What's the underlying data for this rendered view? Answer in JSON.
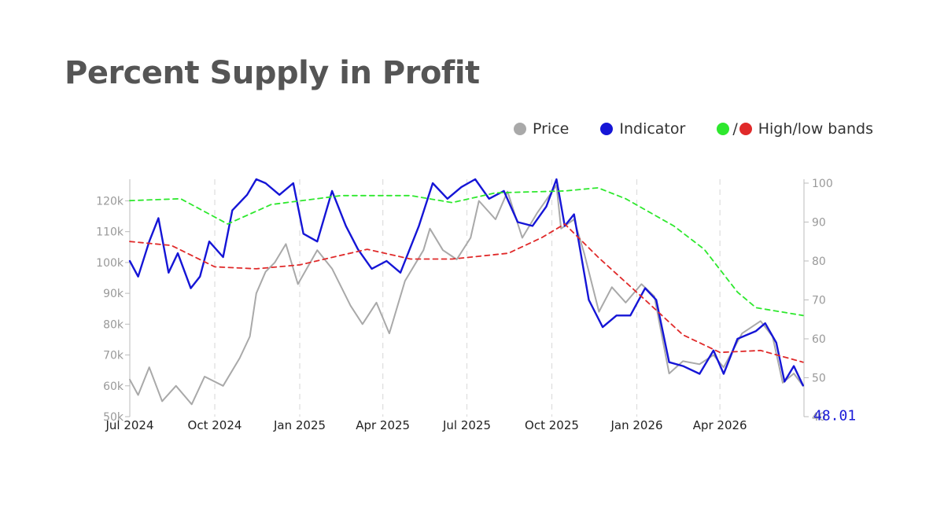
{
  "title": "Percent Supply in Profit",
  "legend": {
    "price": "Price",
    "indicator": "Indicator",
    "bands_slash": "/",
    "bands": "High/low bands"
  },
  "colors": {
    "price": "#a9a9a9",
    "indicator": "#1515d6",
    "high_band": "#2ee82e",
    "low_band": "#e02a2a",
    "grid": "#dddddd",
    "axis": "#bbbbbb"
  },
  "chart_data": {
    "type": "line",
    "x_ticks": [
      "Jul 2024",
      "Oct 2024",
      "Jan 2025",
      "Apr 2025",
      "Jul 2025",
      "Oct 2025",
      "Jan 2026",
      "Apr 2026"
    ],
    "x_range": [
      "2024-07",
      "2026-07"
    ],
    "y_left": {
      "ticks": [
        "50k",
        "60k",
        "70k",
        "80k",
        "90k",
        "100k",
        "110k",
        "120k"
      ],
      "range": [
        50000,
        127000
      ]
    },
    "y_right": {
      "ticks": [
        "40",
        "50",
        "60",
        "70",
        "80",
        "90",
        "100"
      ],
      "range": [
        40,
        101
      ]
    },
    "grid": "vertical dashed",
    "legend_position": "top-right",
    "last_value_label": "48.01",
    "series": [
      {
        "name": "Price",
        "axis": "left",
        "points": [
          [
            "2024-07-01",
            62000
          ],
          [
            "2024-07-10",
            57000
          ],
          [
            "2024-07-22",
            66000
          ],
          [
            "2024-08-05",
            55000
          ],
          [
            "2024-08-20",
            60000
          ],
          [
            "2024-09-06",
            54000
          ],
          [
            "2024-09-20",
            63000
          ],
          [
            "2024-10-10",
            60000
          ],
          [
            "2024-10-28",
            69000
          ],
          [
            "2024-11-08",
            76000
          ],
          [
            "2024-11-15",
            90000
          ],
          [
            "2024-11-25",
            97000
          ],
          [
            "2024-12-05",
            100000
          ],
          [
            "2024-12-17",
            106000
          ],
          [
            "2024-12-30",
            93000
          ],
          [
            "2025-01-20",
            104000
          ],
          [
            "2025-02-05",
            98000
          ],
          [
            "2025-02-25",
            86000
          ],
          [
            "2025-03-10",
            80000
          ],
          [
            "2025-03-25",
            87000
          ],
          [
            "2025-04-08",
            77000
          ],
          [
            "2025-04-25",
            94000
          ],
          [
            "2025-05-15",
            104000
          ],
          [
            "2025-05-22",
            111000
          ],
          [
            "2025-06-05",
            104000
          ],
          [
            "2025-06-20",
            101000
          ],
          [
            "2025-07-05",
            108000
          ],
          [
            "2025-07-14",
            120000
          ],
          [
            "2025-08-01",
            114000
          ],
          [
            "2025-08-14",
            123000
          ],
          [
            "2025-08-30",
            108000
          ],
          [
            "2025-09-15",
            116000
          ],
          [
            "2025-10-06",
            125000
          ],
          [
            "2025-10-11",
            111000
          ],
          [
            "2025-10-25",
            114000
          ],
          [
            "2025-11-05",
            103000
          ],
          [
            "2025-11-21",
            84000
          ],
          [
            "2025-12-05",
            92000
          ],
          [
            "2025-12-20",
            87000
          ],
          [
            "2026-01-06",
            93000
          ],
          [
            "2026-01-20",
            89000
          ],
          [
            "2026-02-05",
            64000
          ],
          [
            "2026-02-20",
            68000
          ],
          [
            "2026-03-10",
            67000
          ],
          [
            "2026-03-25",
            70000
          ],
          [
            "2026-04-05",
            66000
          ],
          [
            "2026-04-25",
            77000
          ],
          [
            "2026-05-15",
            81000
          ],
          [
            "2026-05-28",
            76000
          ],
          [
            "2026-06-08",
            61000
          ],
          [
            "2026-06-20",
            64000
          ],
          [
            "2026-06-30",
            60000
          ]
        ]
      },
      {
        "name": "Indicator",
        "axis": "right",
        "points": [
          [
            "2024-07-01",
            80
          ],
          [
            "2024-07-10",
            76
          ],
          [
            "2024-07-22",
            85
          ],
          [
            "2024-08-01",
            91
          ],
          [
            "2024-08-12",
            77
          ],
          [
            "2024-08-22",
            82
          ],
          [
            "2024-09-05",
            73
          ],
          [
            "2024-09-15",
            76
          ],
          [
            "2024-09-25",
            85
          ],
          [
            "2024-10-10",
            81
          ],
          [
            "2024-10-20",
            93
          ],
          [
            "2024-11-05",
            97
          ],
          [
            "2024-11-15",
            101
          ],
          [
            "2024-11-25",
            100
          ],
          [
            "2024-12-10",
            97
          ],
          [
            "2024-12-25",
            100
          ],
          [
            "2025-01-05",
            87
          ],
          [
            "2025-01-20",
            85
          ],
          [
            "2025-02-05",
            98
          ],
          [
            "2025-02-20",
            89
          ],
          [
            "2025-03-05",
            83
          ],
          [
            "2025-03-20",
            78
          ],
          [
            "2025-04-05",
            80
          ],
          [
            "2025-04-20",
            77
          ],
          [
            "2025-05-10",
            89
          ],
          [
            "2025-05-25",
            100
          ],
          [
            "2025-06-10",
            96
          ],
          [
            "2025-06-25",
            99
          ],
          [
            "2025-07-10",
            101
          ],
          [
            "2025-07-25",
            96
          ],
          [
            "2025-08-10",
            98
          ],
          [
            "2025-08-25",
            90
          ],
          [
            "2025-09-10",
            89
          ],
          [
            "2025-09-25",
            94
          ],
          [
            "2025-10-06",
            101
          ],
          [
            "2025-10-15",
            89
          ],
          [
            "2025-10-25",
            92
          ],
          [
            "2025-11-10",
            70
          ],
          [
            "2025-11-25",
            63
          ],
          [
            "2025-12-10",
            66
          ],
          [
            "2025-12-25",
            66
          ],
          [
            "2026-01-10",
            73
          ],
          [
            "2026-01-22",
            70
          ],
          [
            "2026-02-05",
            54
          ],
          [
            "2026-02-20",
            53
          ],
          [
            "2026-03-10",
            51
          ],
          [
            "2026-03-25",
            57
          ],
          [
            "2026-04-05",
            51
          ],
          [
            "2026-04-20",
            60
          ],
          [
            "2026-05-10",
            62
          ],
          [
            "2026-05-20",
            64
          ],
          [
            "2026-06-01",
            59
          ],
          [
            "2026-06-10",
            49
          ],
          [
            "2026-06-20",
            53
          ],
          [
            "2026-06-30",
            48.01
          ]
        ]
      },
      {
        "name": "High band",
        "axis": "right",
        "points": [
          [
            "2024-07-01",
            95.5
          ],
          [
            "2024-08-25",
            96
          ],
          [
            "2024-10-15",
            89.5
          ],
          [
            "2024-12-01",
            94.5
          ],
          [
            "2025-02-15",
            96.8
          ],
          [
            "2025-05-01",
            96.8
          ],
          [
            "2025-06-15",
            95
          ],
          [
            "2025-08-01",
            97.5
          ],
          [
            "2025-10-15",
            98
          ],
          [
            "2025-11-20",
            98.8
          ],
          [
            "2025-12-20",
            96
          ],
          [
            "2026-02-10",
            89
          ],
          [
            "2026-03-15",
            83
          ],
          [
            "2026-04-20",
            72
          ],
          [
            "2026-05-10",
            68
          ],
          [
            "2026-06-30",
            66
          ]
        ]
      },
      {
        "name": "Low band",
        "axis": "right",
        "points": [
          [
            "2024-07-01",
            85
          ],
          [
            "2024-08-15",
            84
          ],
          [
            "2024-10-01",
            78.5
          ],
          [
            "2024-11-15",
            78
          ],
          [
            "2025-01-01",
            79
          ],
          [
            "2025-03-15",
            83
          ],
          [
            "2025-05-01",
            80.5
          ],
          [
            "2025-06-15",
            80.5
          ],
          [
            "2025-08-15",
            82
          ],
          [
            "2025-09-20",
            86
          ],
          [
            "2025-10-15",
            89.5
          ],
          [
            "2025-11-20",
            81
          ],
          [
            "2026-01-10",
            70
          ],
          [
            "2026-02-20",
            61
          ],
          [
            "2026-04-01",
            56.5
          ],
          [
            "2026-05-15",
            57
          ],
          [
            "2026-06-30",
            54
          ]
        ]
      }
    ]
  }
}
